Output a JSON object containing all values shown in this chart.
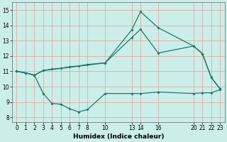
{
  "background_color": "#cceee8",
  "grid_color": "#ddaaaa",
  "line_color": "#1a7a6a",
  "xlabel": "Humidex (Indice chaleur)",
  "xlim": [
    -0.5,
    23.5
  ],
  "ylim": [
    7.7,
    15.5
  ],
  "yticks": [
    8,
    9,
    10,
    11,
    12,
    13,
    14,
    15
  ],
  "xtick_positions": [
    0,
    1,
    2,
    3,
    4,
    5,
    6,
    7,
    8,
    10,
    13,
    14,
    16,
    20,
    21,
    22,
    23
  ],
  "xtick_labels": [
    "0",
    "1",
    "2",
    "3",
    "4",
    "5",
    "6",
    "7",
    "8",
    "10",
    "13",
    "14",
    "16",
    "20",
    "21",
    "22",
    "23"
  ],
  "curve1_x": [
    0,
    1,
    2,
    3,
    4,
    5,
    6,
    7,
    8,
    10,
    13,
    14,
    16,
    20,
    21,
    22,
    23
  ],
  "curve1_y": [
    11.0,
    10.9,
    10.75,
    9.55,
    8.9,
    8.85,
    8.55,
    8.35,
    8.5,
    9.55,
    9.55,
    9.55,
    9.65,
    9.55,
    9.6,
    9.6,
    9.8
  ],
  "curve2_x": [
    0,
    1,
    2,
    3,
    4,
    5,
    6,
    7,
    8,
    10,
    13,
    14,
    16,
    20,
    21,
    22,
    23
  ],
  "curve2_y": [
    11.0,
    10.9,
    10.75,
    11.05,
    11.15,
    11.2,
    11.3,
    11.35,
    11.45,
    11.55,
    13.7,
    14.9,
    13.85,
    12.65,
    12.15,
    10.6,
    9.85
  ],
  "curve3_x": [
    0,
    1,
    2,
    3,
    10,
    13,
    14,
    16,
    20,
    21,
    22,
    23
  ],
  "curve3_y": [
    11.0,
    10.9,
    10.75,
    11.05,
    11.55,
    13.2,
    13.75,
    12.2,
    12.65,
    12.15,
    10.6,
    9.85
  ]
}
